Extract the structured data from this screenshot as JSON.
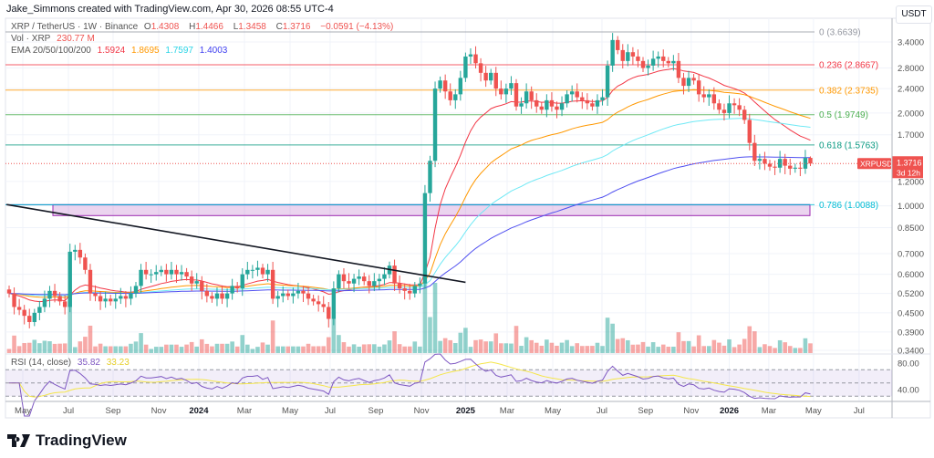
{
  "header": {
    "attribution": "Jake_Simmons created with TradingView.com, Apr 30, 2026 08:55 UTC-4"
  },
  "legend": {
    "symbol": "XRP / TetherUS · 1W · Binance",
    "open_label": "O",
    "open": "1.4308",
    "high_label": "H",
    "high": "1.4466",
    "low_label": "L",
    "low": "1.3458",
    "close_label": "C",
    "close": "1.3716",
    "change": "−0.0591 (−4.13%)",
    "vol_label": "Vol · XRP",
    "vol_value": "230.77 M",
    "ema_label": "EMA 20/50/100/200",
    "ema20": "1.5924",
    "ema50": "1.8695",
    "ema100": "1.7597",
    "ema200": "1.4003",
    "rsi_label": "RSI (14, close)",
    "rsi_value": "35.82",
    "rsi_ma_value": "33.23"
  },
  "price_axis": {
    "currency": "USDT",
    "ticks": [
      "3.4000",
      "2.8000",
      "2.4000",
      "2.0000",
      "1.7000",
      "1.2000",
      "1.0000",
      "0.8500",
      "0.7000",
      "0.6000",
      "0.5200",
      "0.4500",
      "0.3900",
      "0.3400"
    ]
  },
  "rsi_axis": {
    "ticks": [
      "80.00",
      "40.00"
    ]
  },
  "time_axis": {
    "labels": [
      "May",
      "Jul",
      "Sep",
      "Nov",
      "2024",
      "Mar",
      "May",
      "Jul",
      "Sep",
      "Nov",
      "2025",
      "Mar",
      "May",
      "Jul",
      "Sep",
      "Nov",
      "2026",
      "Mar",
      "May",
      "Jul"
    ]
  },
  "price_tag": {
    "symbol": "XRPUSDT",
    "price": "1.3716",
    "countdown": "3d 12h"
  },
  "brand": {
    "name": "TradingView"
  },
  "colors": {
    "up": "#26a69a",
    "down": "#ef5350",
    "ema20": "#f23645",
    "ema50": "#ff9800",
    "ema100": "#6fe9f5",
    "ema200": "#5050f0",
    "rsi": "#7e57c2",
    "rsi_ma": "#f5e64a",
    "zone": "#9c27b0"
  },
  "chart_data": {
    "type": "candlestick",
    "interval": "1W",
    "scale": "log",
    "ylim": [
      0.34,
      3.66
    ],
    "period": [
      "Apr 2023",
      "Apr 2026"
    ],
    "closes": [
      0.52,
      0.47,
      0.46,
      0.44,
      0.42,
      0.45,
      0.47,
      0.5,
      0.53,
      0.51,
      0.49,
      0.47,
      0.71,
      0.72,
      0.68,
      0.62,
      0.52,
      0.51,
      0.49,
      0.5,
      0.49,
      0.5,
      0.51,
      0.5,
      0.52,
      0.55,
      0.62,
      0.6,
      0.6,
      0.61,
      0.62,
      0.6,
      0.62,
      0.6,
      0.61,
      0.59,
      0.56,
      0.57,
      0.53,
      0.51,
      0.5,
      0.52,
      0.5,
      0.52,
      0.55,
      0.54,
      0.6,
      0.62,
      0.62,
      0.63,
      0.6,
      0.62,
      0.5,
      0.51,
      0.52,
      0.51,
      0.52,
      0.53,
      0.52,
      0.5,
      0.49,
      0.48,
      0.47,
      0.43,
      0.54,
      0.6,
      0.57,
      0.56,
      0.58,
      0.59,
      0.57,
      0.55,
      0.57,
      0.58,
      0.6,
      0.64,
      0.56,
      0.54,
      0.53,
      0.52,
      0.55,
      0.56,
      1.1,
      1.4,
      2.4,
      2.55,
      2.35,
      2.2,
      2.3,
      2.6,
      3.05,
      3.1,
      2.9,
      2.7,
      2.55,
      2.7,
      2.4,
      2.3,
      2.4,
      2.5,
      2.1,
      2.15,
      2.35,
      2.2,
      2.1,
      2.05,
      2.2,
      2.1,
      2.05,
      2.15,
      2.3,
      2.35,
      2.25,
      2.2,
      2.15,
      2.1,
      2.2,
      2.25,
      2.85,
      3.45,
      3.2,
      2.95,
      3.15,
      3.05,
      2.95,
      2.8,
      2.85,
      3.0,
      3.05,
      2.95,
      2.9,
      2.95,
      2.6,
      2.45,
      2.6,
      2.55,
      2.3,
      2.25,
      2.3,
      2.15,
      2.05,
      2.0,
      2.15,
      2.12,
      2.05,
      1.9,
      1.6,
      1.4,
      1.42,
      1.37,
      1.34,
      1.33,
      1.42,
      1.35,
      1.32,
      1.33,
      1.32,
      1.4308,
      1.3716
    ],
    "last_candle": {
      "open": 1.4308,
      "high": 1.4466,
      "low": 1.3458,
      "close": 1.3716
    },
    "fib_levels": [
      {
        "label": "0 (3.6639)",
        "price": 3.6639,
        "color": "#9598a1"
      },
      {
        "label": "0.236 (2.8667)",
        "price": 2.8667,
        "color": "#f23645"
      },
      {
        "label": "0.382 (2.3735)",
        "price": 2.3735,
        "color": "#ff9800"
      },
      {
        "label": "0.5 (1.9749)",
        "price": 1.9749,
        "color": "#4caf50"
      },
      {
        "label": "0.618 (1.5763)",
        "price": 1.5763,
        "color": "#089981"
      },
      {
        "label": "0.786 (1.0088)",
        "price": 1.0088,
        "color": "#00bcd4"
      }
    ],
    "zone": {
      "top": 1.0088,
      "bottom": 0.93
    },
    "trendline": {
      "from": {
        "week": -0.5,
        "price": 1.01
      },
      "to": {
        "week": 90,
        "price": 0.565
      }
    },
    "rsi": {
      "period": 14,
      "bands": [
        70,
        50,
        30
      ]
    }
  }
}
